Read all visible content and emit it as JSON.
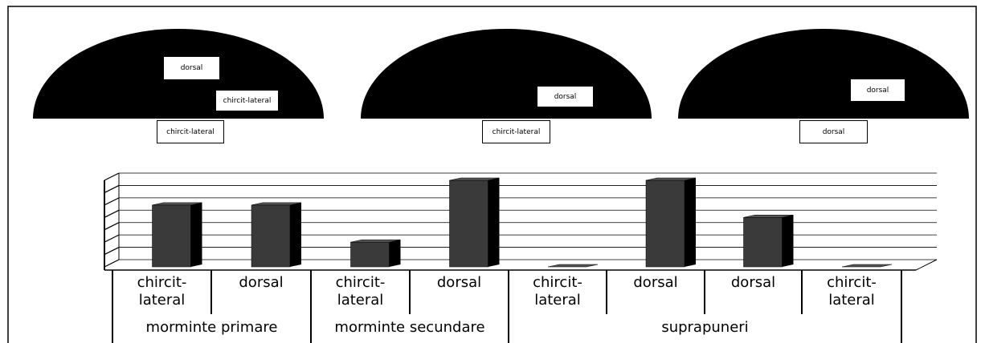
{
  "diagram": {
    "domes": [
      {
        "inside": [
          "dorsal",
          "chircit-lateral"
        ],
        "below": "chircit-lateral"
      },
      {
        "inside": [
          "dorsal"
        ],
        "below": "chircit-lateral"
      },
      {
        "inside": [
          "dorsal"
        ],
        "below": "dorsal"
      }
    ]
  },
  "chart_data": {
    "type": "bar",
    "categories": [
      "chircit-lateral",
      "dorsal",
      "chircit-lateral",
      "dorsal",
      "chircit-lateral",
      "dorsal",
      "dorsal",
      "chircit-lateral"
    ],
    "groups": [
      {
        "name": "morminte primare",
        "size": 2
      },
      {
        "name": "morminte secundare",
        "size": 2
      },
      {
        "name": "suprapuneri",
        "size": 4
      }
    ],
    "values": [
      5,
      5,
      2,
      7,
      0,
      7,
      4,
      0
    ],
    "color": "#3a3a3a",
    "ylim": [
      0,
      7
    ],
    "yticks": [
      0,
      1,
      2,
      3,
      4,
      5,
      6,
      7
    ],
    "grid": true
  }
}
